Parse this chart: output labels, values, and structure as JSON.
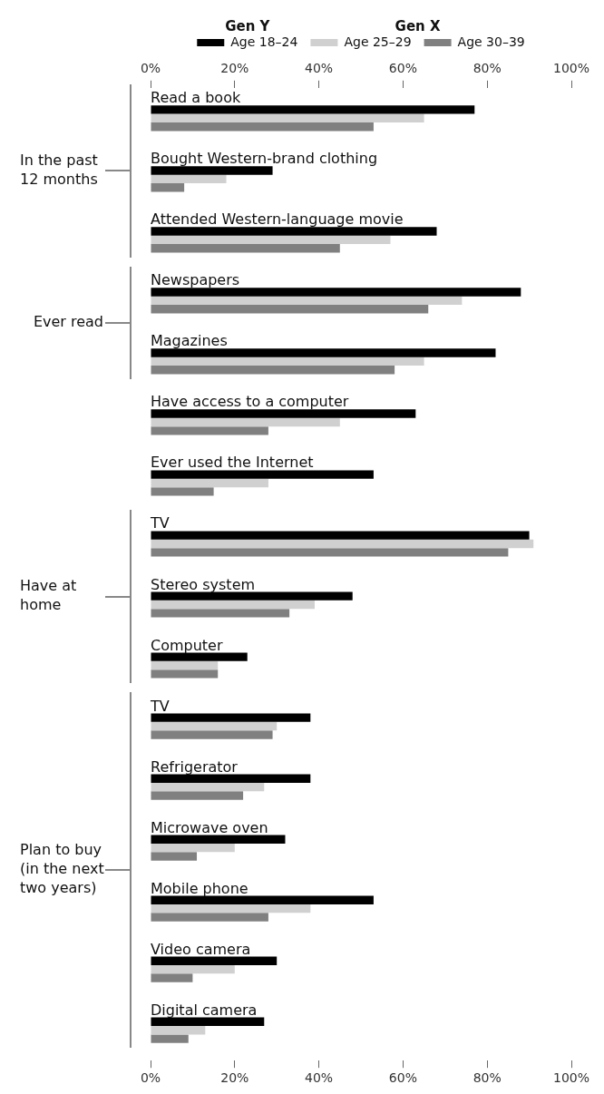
{
  "chart_data": {
    "type": "bar",
    "orientation": "horizontal",
    "legend": "top",
    "grid": false,
    "annotations": [
      "Gen Y",
      "Gen X",
      "In the past 12 months",
      "Ever read",
      "Have at home",
      "Plan to buy (in the next two years)"
    ],
    "categories": [
      "Read a book",
      "Bought Western-brand clothing",
      "Attended Western-language movie",
      "Newspapers",
      "Magazines",
      "Have access to a computer",
      "Ever used the Internet",
      "TV",
      "Stereo system",
      "Computer",
      "TV",
      "Refrigerator",
      "Microwave oven",
      "Mobile phone",
      "Video camera",
      "Digital camera"
    ],
    "series": [
      {
        "name": "Age 18–24",
        "color": "#000000",
        "values": [
          77,
          29,
          68,
          88,
          82,
          63,
          53,
          90,
          48,
          23,
          38,
          38,
          32,
          53,
          30,
          27
        ]
      },
      {
        "name": "Age 25–29",
        "color": "#d0d0d0",
        "values": [
          65,
          18,
          57,
          74,
          65,
          45,
          28,
          91,
          39,
          16,
          30,
          27,
          20,
          38,
          20,
          13
        ]
      },
      {
        "name": "Age 30–39",
        "color": "#808080",
        "values": [
          53,
          8,
          45,
          66,
          58,
          28,
          15,
          85,
          33,
          16,
          29,
          22,
          11,
          28,
          10,
          9
        ]
      }
    ],
    "xlim": [
      0,
      100
    ],
    "xticks": [
      {
        "value": 0,
        "label": "0%"
      },
      {
        "value": 20,
        "label": "20%"
      },
      {
        "value": 40,
        "label": "40%"
      },
      {
        "value": 60,
        "label": "60%"
      },
      {
        "value": 80,
        "label": "80%"
      },
      {
        "value": 100,
        "label": "100%"
      }
    ],
    "x2lim": [
      0,
      100
    ],
    "x2ticks": [
      {
        "value": 0,
        "label": "0%"
      },
      {
        "value": 20,
        "label": "20%"
      },
      {
        "value": 40,
        "label": "40%"
      },
      {
        "value": 60,
        "label": "60%"
      },
      {
        "value": 80,
        "label": "80%"
      },
      {
        "value": 100,
        "label": "100%"
      }
    ]
  }
}
